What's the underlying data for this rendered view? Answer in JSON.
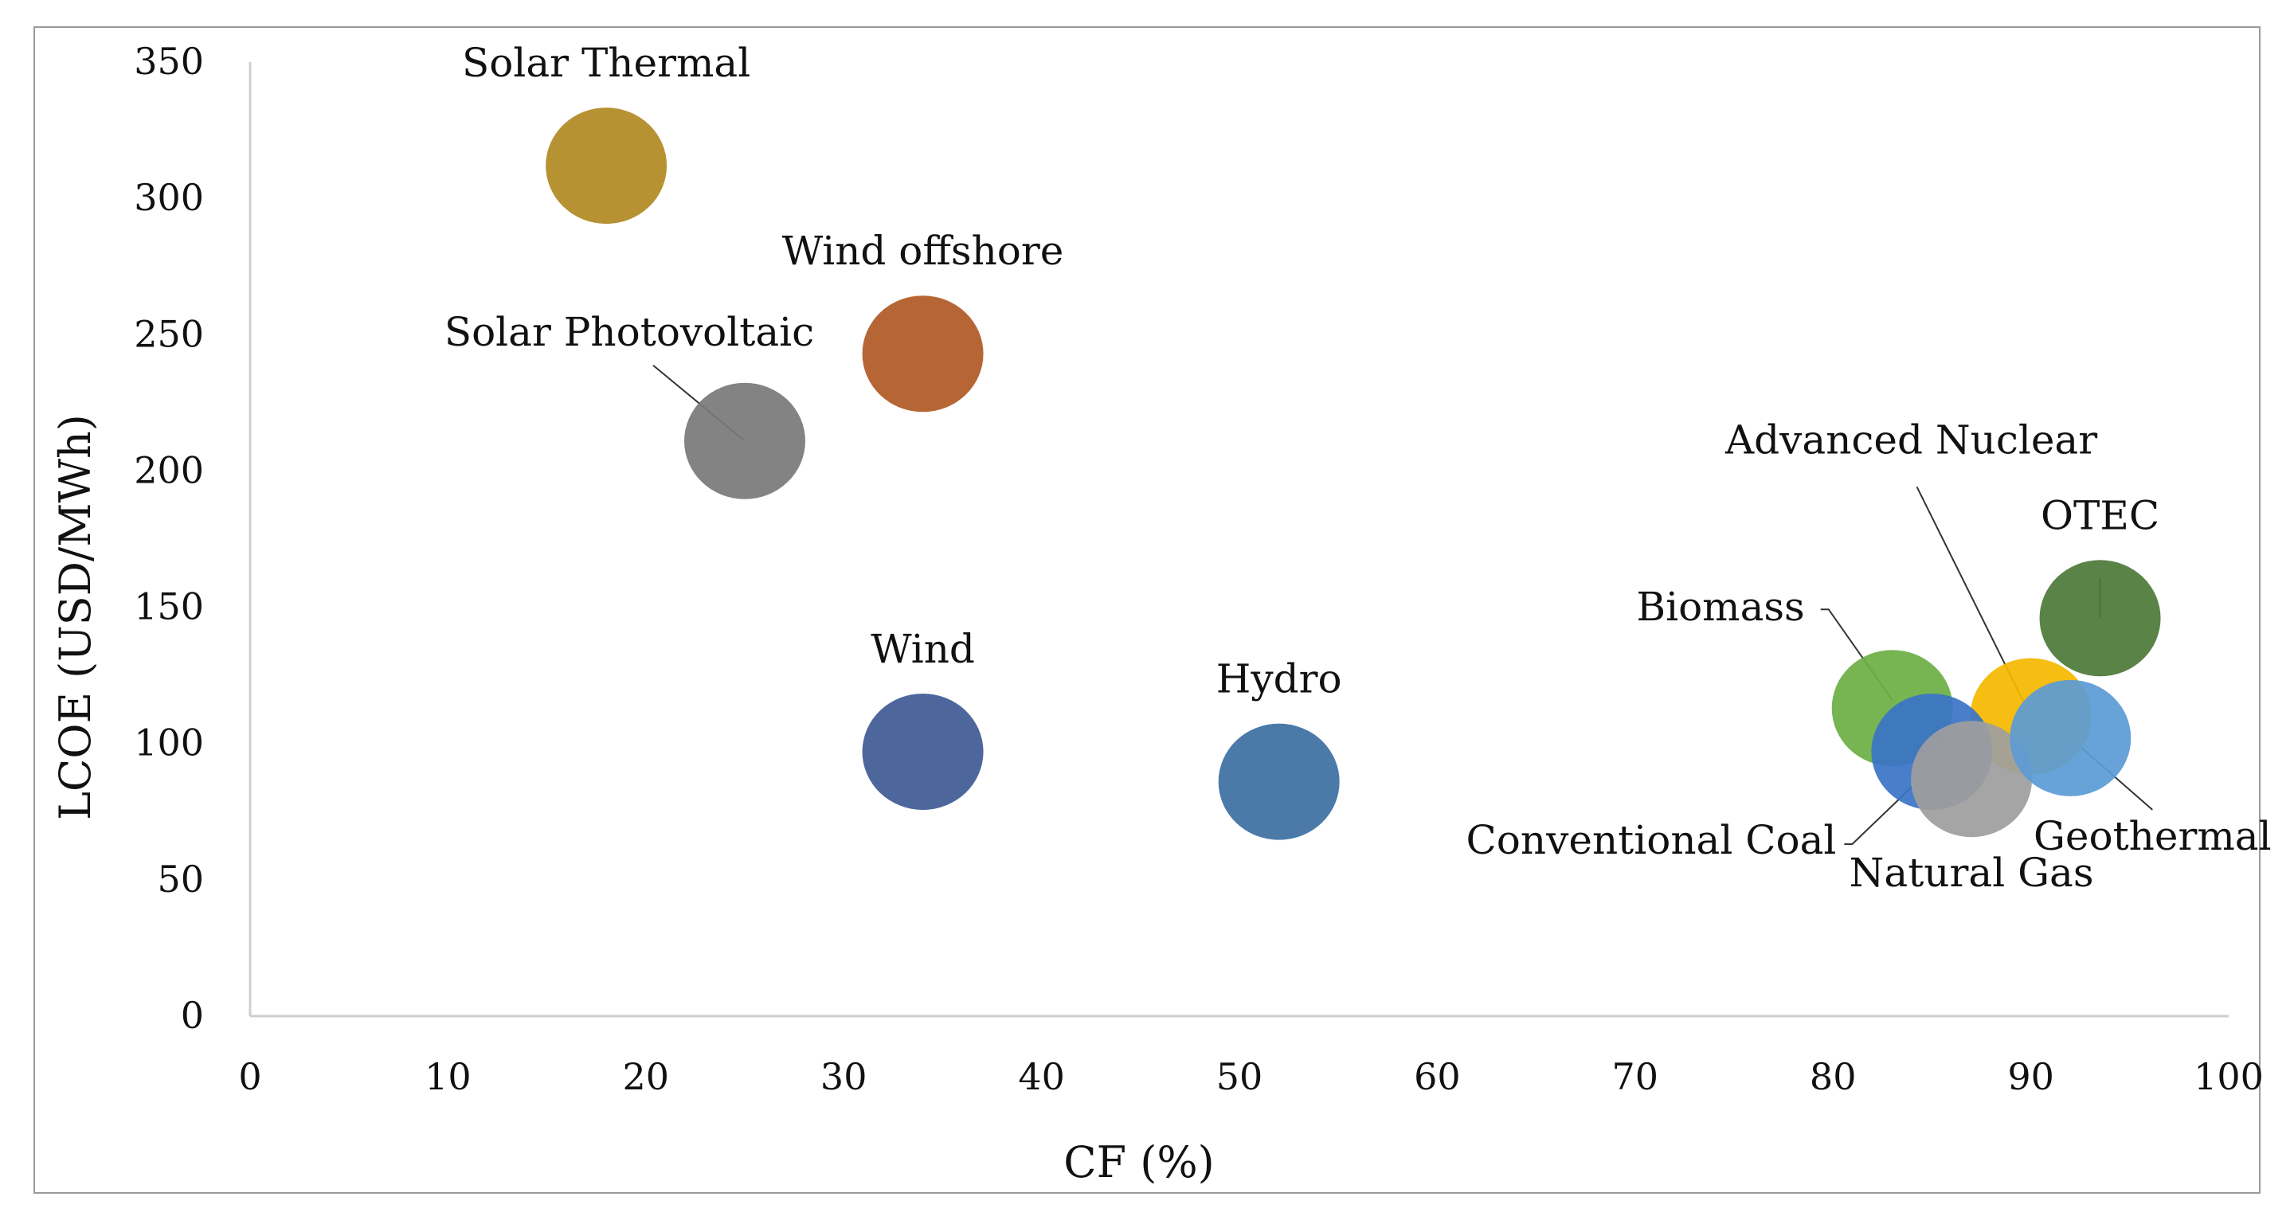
{
  "chart_data": {
    "type": "bubble",
    "xlabel": "CF (%)",
    "ylabel": "LCOE (USD/MWh)",
    "xlim": [
      0,
      100
    ],
    "ylim": [
      0,
      350
    ],
    "xticks": [
      0,
      10,
      20,
      30,
      40,
      50,
      60,
      70,
      80,
      90,
      100
    ],
    "yticks": [
      0,
      50,
      100,
      150,
      200,
      250,
      300,
      350
    ],
    "grid": false,
    "series": [
      {
        "name": "Solar Thermal",
        "x": 18,
        "y": 312,
        "color": "#B08A24"
      },
      {
        "name": "Wind offshore",
        "x": 34,
        "y": 243,
        "color": "#B05A26"
      },
      {
        "name": "Solar Photovoltaic",
        "x": 25,
        "y": 211,
        "color": "#7A7A7A"
      },
      {
        "name": "Wind",
        "x": 34,
        "y": 97,
        "color": "#3F5A94"
      },
      {
        "name": "Hydro",
        "x": 52,
        "y": 86,
        "color": "#3D70A3"
      },
      {
        "name": "OTEC",
        "x": 93.5,
        "y": 146,
        "color": "#4E7A3A"
      },
      {
        "name": "Advanced Nuclear",
        "x": 90,
        "y": 110,
        "color": "#F5B800"
      },
      {
        "name": "Biomass",
        "x": 83,
        "y": 113,
        "color": "#6DAE45"
      },
      {
        "name": "Conventional Coal",
        "x": 85,
        "y": 97,
        "color": "#3A74C6"
      },
      {
        "name": "Natural Gas",
        "x": 87,
        "y": 87,
        "color": "#9E9E9E"
      },
      {
        "name": "Geothermal",
        "x": 92,
        "y": 102,
        "color": "#5B9BD5"
      }
    ]
  }
}
